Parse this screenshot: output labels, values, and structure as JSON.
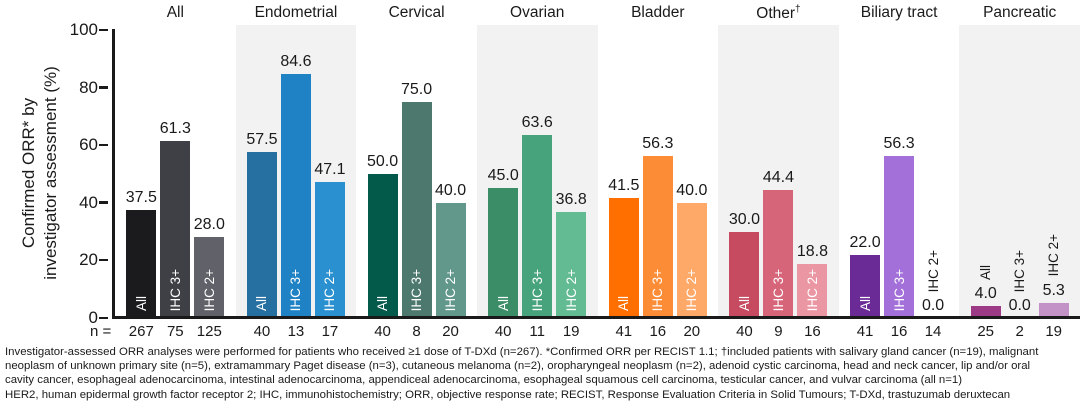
{
  "chart_data": {
    "type": "bar",
    "title": "",
    "ylabel_lines": [
      "Confirmed ORR* by",
      "investigator assessment (%)"
    ],
    "ylim": [
      0,
      100
    ],
    "yticks": [
      0,
      20,
      40,
      60,
      80,
      100
    ],
    "grid": false,
    "legend": "none",
    "bar_labels": [
      "All",
      "IHC 3+",
      "IHC 2+"
    ],
    "n_prefix": "n =",
    "shaded_panel_color": "#f2f2f2",
    "axis_color": "#1a1a1a",
    "groups": [
      {
        "label": "All",
        "sup": "",
        "shaded": false,
        "values": [
          37.5,
          61.3,
          28.0
        ],
        "n": [
          267,
          75,
          125
        ],
        "colors": [
          "#1b1b1d",
          "#3e4045",
          "#606169"
        ]
      },
      {
        "label": "Endometrial",
        "sup": "",
        "shaded": true,
        "values": [
          57.5,
          84.6,
          47.1
        ],
        "n": [
          40,
          13,
          17
        ],
        "colors": [
          "#2570a1",
          "#1f82c4",
          "#2b90d0"
        ]
      },
      {
        "label": "Cervical",
        "sup": "",
        "shaded": false,
        "values": [
          50.0,
          75.0,
          40.0
        ],
        "n": [
          40,
          8,
          20
        ],
        "colors": [
          "#03594a",
          "#4c786d",
          "#61988b"
        ]
      },
      {
        "label": "Ovarian",
        "sup": "",
        "shaded": true,
        "values": [
          45.0,
          63.6,
          36.8
        ],
        "n": [
          40,
          11,
          19
        ],
        "colors": [
          "#3a8d66",
          "#47a37b",
          "#63bb93"
        ]
      },
      {
        "label": "Bladder",
        "sup": "",
        "shaded": false,
        "values": [
          41.5,
          56.3,
          40.0
        ],
        "n": [
          41,
          16,
          20
        ],
        "colors": [
          "#ff6f00",
          "#fd8c36",
          "#ffa969"
        ]
      },
      {
        "label": "Other",
        "sup": "†",
        "shaded": true,
        "values": [
          30.0,
          44.4,
          18.8
        ],
        "n": [
          40,
          9,
          16
        ],
        "colors": [
          "#c64a60",
          "#d76579",
          "#ea96a3"
        ]
      },
      {
        "label": "Biliary tract",
        "sup": "",
        "shaded": false,
        "values": [
          22.0,
          56.3,
          0.0
        ],
        "n": [
          41,
          16,
          14
        ],
        "colors": [
          "#6a2b96",
          "#a36fd9",
          null
        ]
      },
      {
        "label": "Pancreatic",
        "sup": "",
        "shaded": true,
        "values": [
          4.0,
          0.0,
          5.3
        ],
        "n": [
          25,
          2,
          19
        ],
        "colors": [
          "#9c3a85",
          null,
          "#c392c6"
        ]
      }
    ]
  },
  "footnotes": [
    "Investigator-assessed ORR analyses were performed for patients who received ≥1 dose of T-DXd (n=267). *Confirmed ORR per RECIST 1.1; †included patients with salivary gland cancer (n=19), malignant",
    "neoplasm of unknown primary site (n=5), extramammary Paget disease (n=3), cutaneous melanoma (n=2), oropharyngeal neoplasm (n=2), adenoid cystic carcinoma, head and neck cancer, lip and/or oral",
    "cavity cancer, esophageal adenocarcinoma, intestinal adenocarcinoma, appendiceal adenocarcinoma, esophageal squamous cell carcinoma, testicular cancer, and vulvar carcinoma (all n=1)",
    "HER2, human epidermal growth factor receptor 2; IHC, immunohistochemistry; ORR, objective response rate; RECIST, Response Evaluation Criteria in Solid Tumours; T-DXd, trastuzumab deruxtecan"
  ]
}
